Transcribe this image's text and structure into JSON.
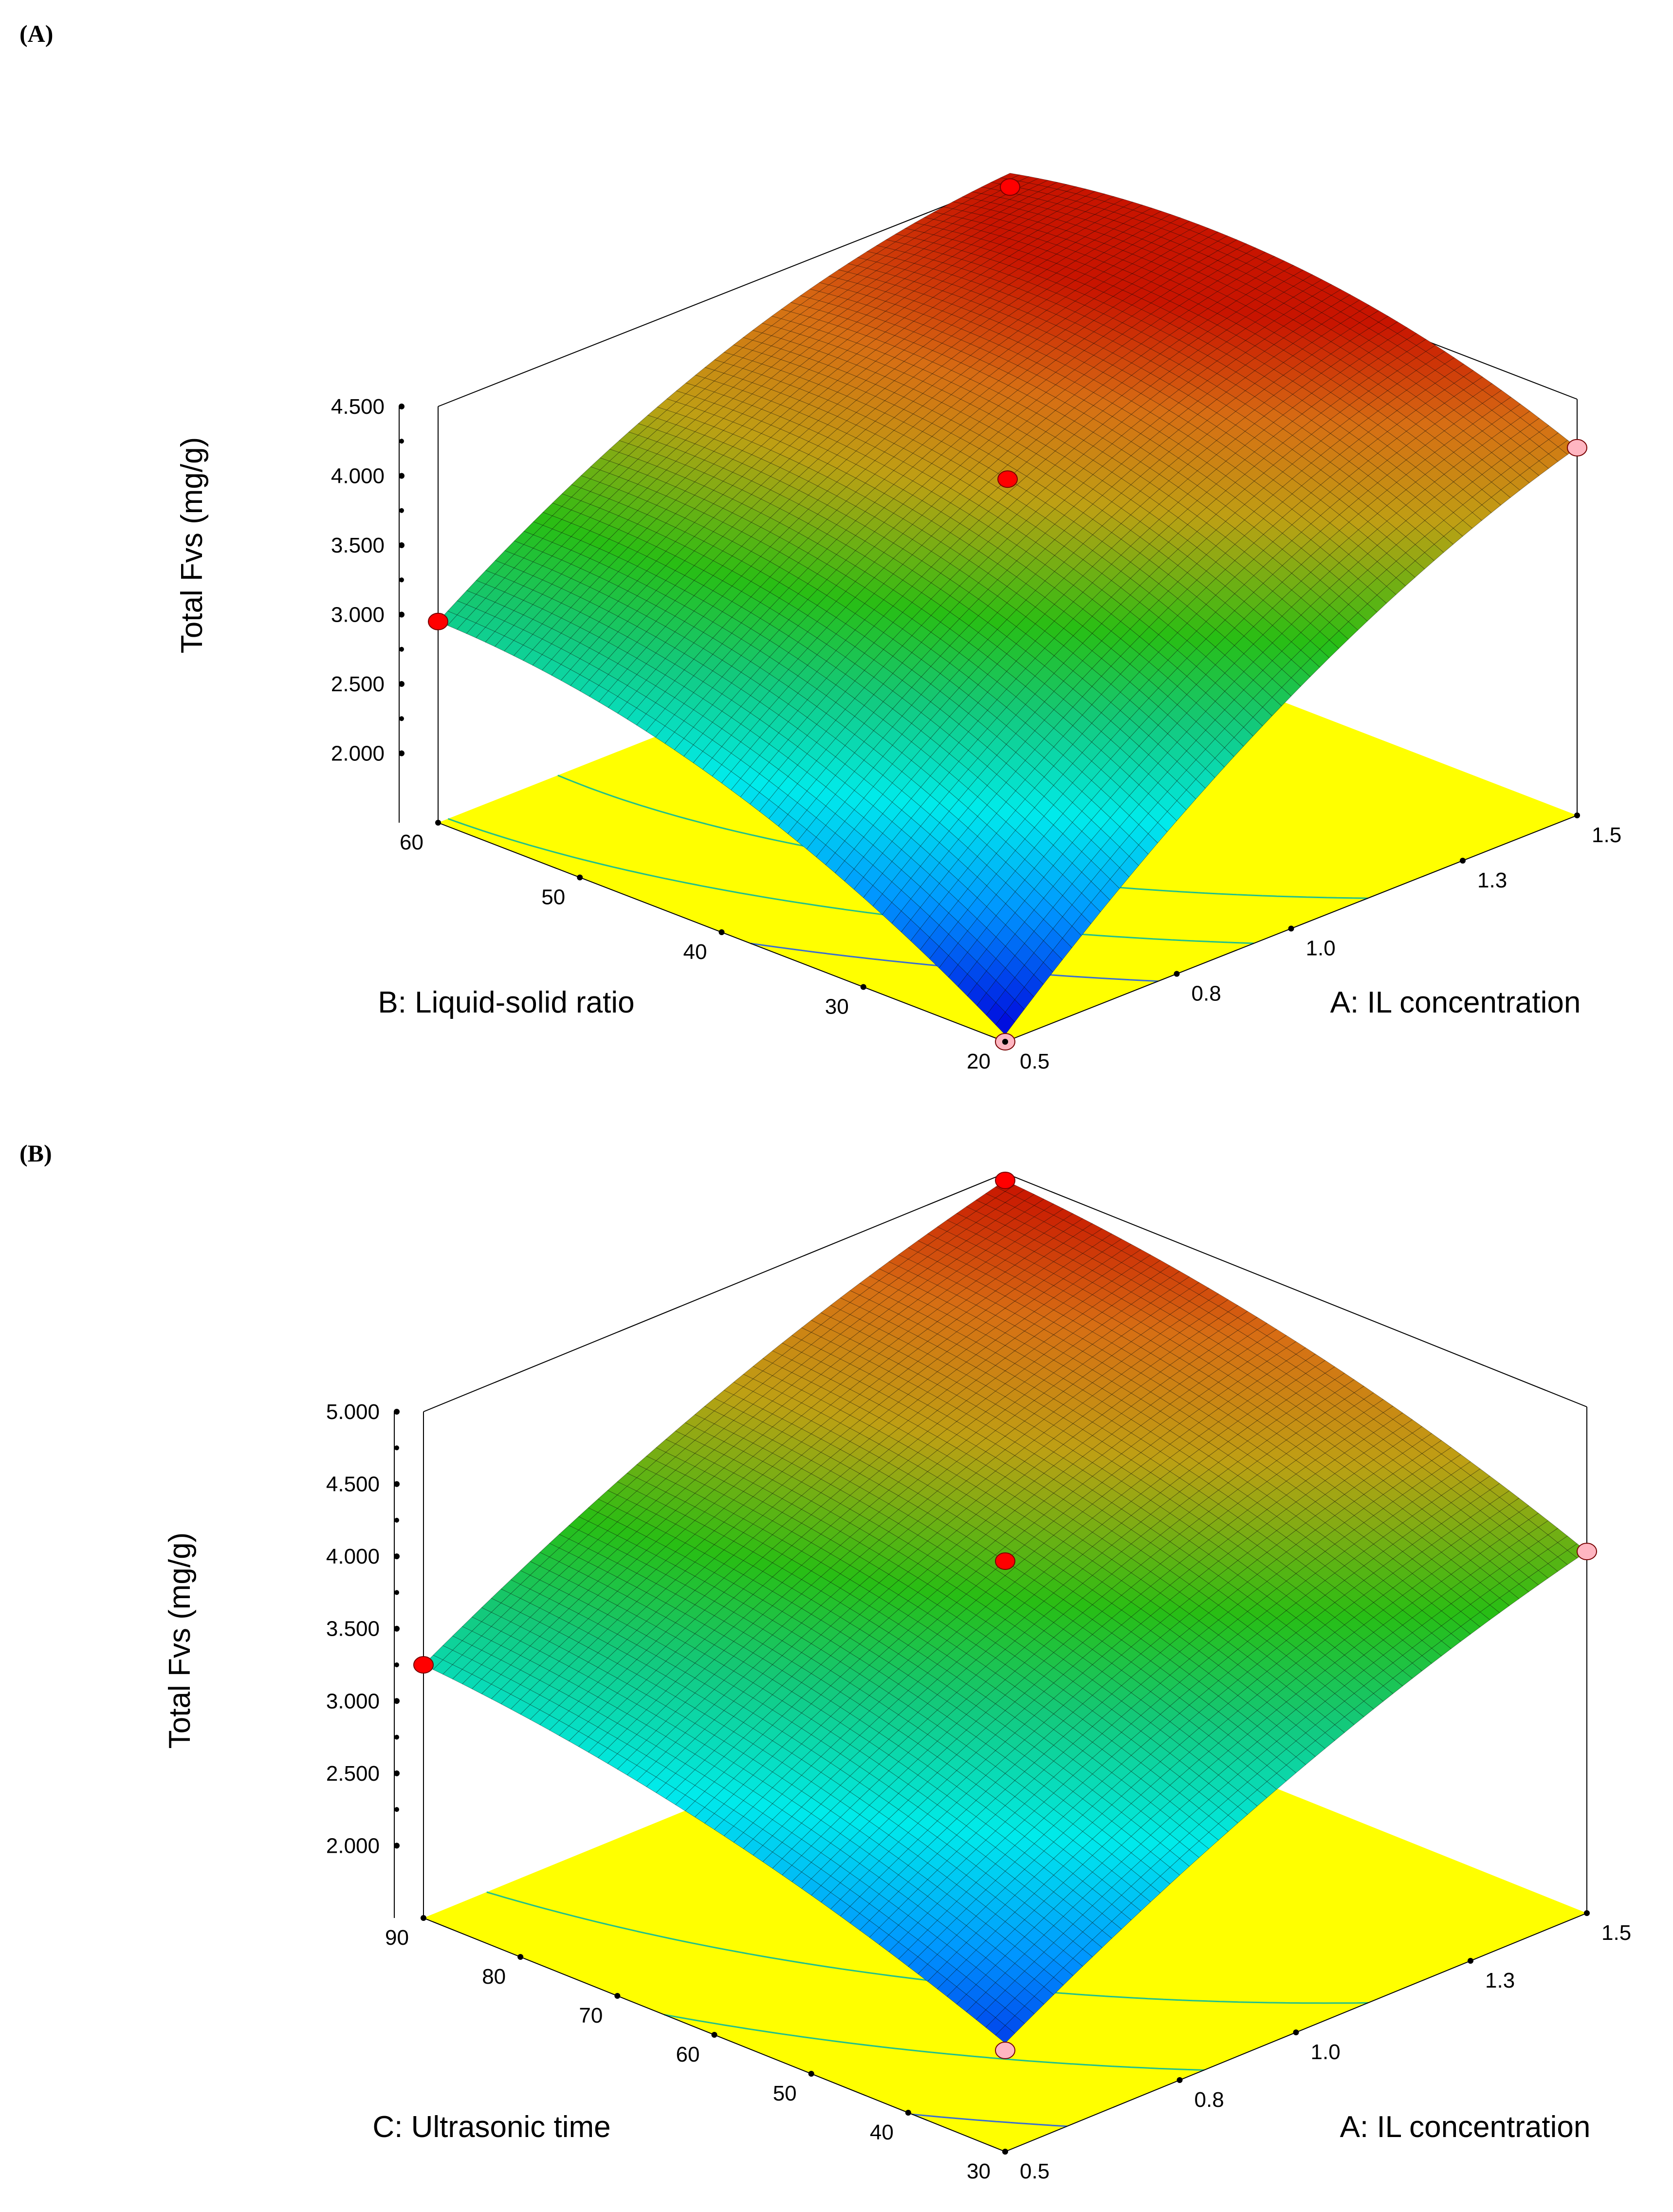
{
  "chart_data": [
    {
      "panel": "(A)",
      "type": "surface3d",
      "zlabel": "Total Fvs (mg/g)",
      "xlabel": "A: IL concentration",
      "ylabel": "B: Liquid-solid ratio",
      "z_ticks": [
        "2.000",
        "2.500",
        "3.000",
        "3.500",
        "4.000",
        "4.500"
      ],
      "x_ticks": [
        "0.5",
        "0.8",
        "1.0",
        "1.3",
        "1.5"
      ],
      "y_ticks": [
        "20",
        "30",
        "40",
        "50",
        "60"
      ],
      "xlim": [
        0.5,
        1.5
      ],
      "ylim": [
        20,
        60
      ],
      "zlim": [
        1.5,
        4.5
      ],
      "surface_corners": {
        "A_low_B_low": 1.55,
        "A_high_B_low": 4.15,
        "A_low_B_high": 2.95,
        "A_high_B_high": 4.55,
        "center": 3.95
      },
      "color_range": [
        1.55,
        4.55
      ],
      "design_points": [
        {
          "A": 0.5,
          "B": 60,
          "z": 2.95,
          "color": "#ff0000"
        },
        {
          "A": 1.0,
          "B": 40,
          "z": 3.95,
          "color": "#ff0000"
        },
        {
          "A": 1.5,
          "B": 60,
          "z": 4.45,
          "color": "#ff0000"
        },
        {
          "A": 1.5,
          "B": 20,
          "z": 4.15,
          "color": "#ffb6c1"
        },
        {
          "A": 0.5,
          "B": 20,
          "z": 1.5,
          "color": "#ffb6c1"
        }
      ],
      "contour_levels": [
        2.5,
        3.0,
        3.5
      ]
    },
    {
      "panel": "(B)",
      "type": "surface3d",
      "zlabel": "Total Fvs (mg/g)",
      "xlabel": "A: IL concentration",
      "ylabel": "C: Ultrasonic time",
      "z_ticks": [
        "2.000",
        "2.500",
        "3.000",
        "3.500",
        "4.000",
        "4.500",
        "5.000"
      ],
      "x_ticks": [
        "0.5",
        "0.8",
        "1.0",
        "1.3",
        "1.5"
      ],
      "y_ticks": [
        "30",
        "40",
        "50",
        "60",
        "70",
        "80",
        "90"
      ],
      "xlim": [
        0.5,
        1.5
      ],
      "ylim": [
        30,
        90
      ],
      "zlim": [
        1.5,
        5.0
      ],
      "surface_corners": {
        "A_low_B_low": 2.25,
        "A_high_B_low": 4.0,
        "A_low_B_high": 3.25,
        "A_high_B_high": 4.95,
        "center": 3.95
      },
      "color_range": [
        2.0,
        4.95
      ],
      "design_points": [
        {
          "A": 0.5,
          "B": 90,
          "z": 3.25,
          "color": "#ff0000"
        },
        {
          "A": 1.0,
          "B": 60,
          "z": 3.95,
          "color": "#ff0000"
        },
        {
          "A": 1.5,
          "B": 90,
          "z": 4.95,
          "color": "#ff0000"
        },
        {
          "A": 1.5,
          "B": 30,
          "z": 4.0,
          "color": "#ffb6c1"
        },
        {
          "A": 0.5,
          "B": 30,
          "z": 2.2,
          "color": "#ffb6c1"
        }
      ],
      "contour_levels": [
        2.5,
        3.0,
        3.5
      ]
    }
  ]
}
